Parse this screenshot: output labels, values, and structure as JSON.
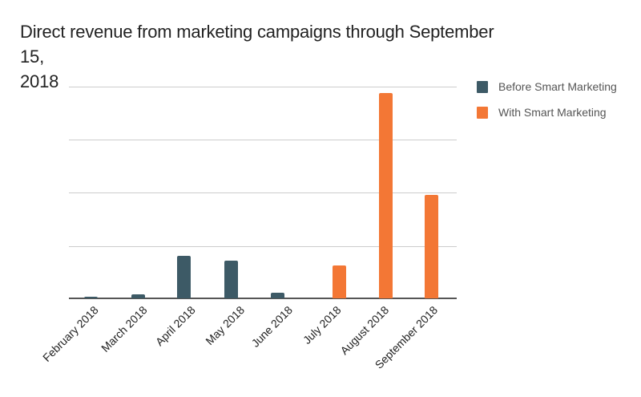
{
  "chart_data": {
    "type": "bar",
    "title": "Direct revenue from marketing campaigns through September 15, 2018",
    "xlabel": "",
    "ylabel": "",
    "y_axis_labels_shown": false,
    "grid": true,
    "legend_position": "right",
    "ylim": [
      0,
      4
    ],
    "gridline_values": [
      1,
      2,
      3,
      4
    ],
    "categories": [
      "February 2018",
      "March 2018",
      "April 2018",
      "May 2018",
      "June 2018",
      "July 2018",
      "August 2018",
      "September 2018"
    ],
    "series": [
      {
        "name": "Before Smart Marketing",
        "color": "#3d5a66",
        "values": [
          0.02,
          0.08,
          0.81,
          0.71,
          0.11,
          null,
          null,
          null
        ]
      },
      {
        "name": "With Smart Marketing",
        "color": "#f37735",
        "values": [
          null,
          null,
          null,
          null,
          null,
          0.62,
          3.88,
          1.96
        ]
      }
    ],
    "note": "Values are in relative gridline units; the chart shows no y-axis tick labels."
  },
  "title": {
    "line1": "Direct revenue from marketing campaigns through September 15,",
    "line2": "2018"
  },
  "legend": {
    "items": [
      {
        "label": "Before Smart Marketing",
        "color": "#3d5a66"
      },
      {
        "label": "With Smart Marketing",
        "color": "#f37735"
      }
    ]
  },
  "x_labels": [
    "February 2018",
    "March 2018",
    "April 2018",
    "May 2018",
    "June 2018",
    "July 2018",
    "August 2018",
    "September 2018"
  ],
  "colors": {
    "before": "#3d5a66",
    "with": "#f37735",
    "grid": "#cccccc",
    "axis": "#555555"
  }
}
